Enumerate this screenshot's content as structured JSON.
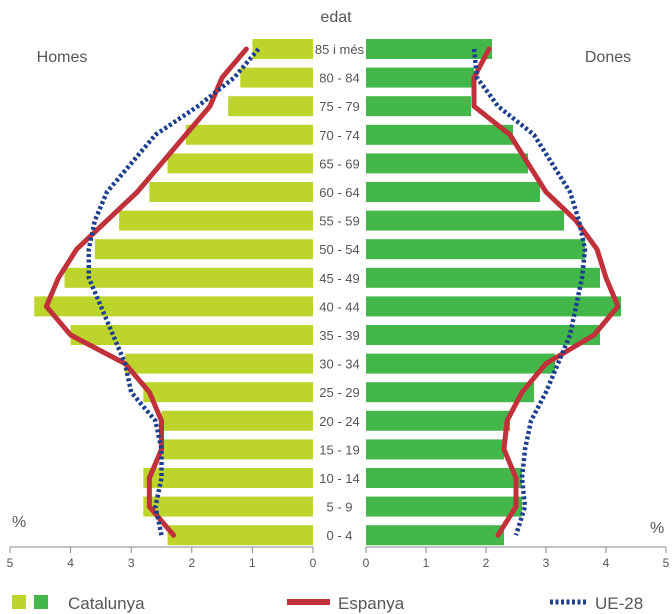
{
  "chart_data": {
    "type": "bar",
    "orientation": "horizontal",
    "layout": "population-pyramid",
    "center_label": "edat",
    "left_label": "Homes",
    "right_label": "Dones",
    "unit_label_left": "%",
    "unit_label_right": "%",
    "categories": [
      "85 i més",
      "80 - 84",
      "75 - 79",
      "70 - 74",
      "65 - 69",
      "60 - 64",
      "55 - 59",
      "50 - 54",
      "45 - 49",
      "40 - 44",
      "35 - 39",
      "30 - 34",
      "25 - 29",
      "20 - 24",
      "15 - 19",
      "10 - 14",
      "5 - 9",
      "0 - 4"
    ],
    "xlim": [
      0,
      5
    ],
    "ticks_left": [
      "5",
      "4",
      "3",
      "2",
      "1",
      "0"
    ],
    "ticks_right": [
      "0",
      "1",
      "2",
      "3",
      "4",
      "5"
    ],
    "series": [
      {
        "name": "Catalunya",
        "side": "left",
        "kind": "bar",
        "color": "#bdd42c",
        "values": [
          1.0,
          1.2,
          1.4,
          2.1,
          2.4,
          2.7,
          3.2,
          3.6,
          4.1,
          4.6,
          4.0,
          3.1,
          2.8,
          2.5,
          2.5,
          2.8,
          2.8,
          2.4
        ]
      },
      {
        "name": "Catalunya",
        "side": "right",
        "kind": "bar",
        "color": "#44b74a",
        "values": [
          2.1,
          1.8,
          1.75,
          2.45,
          2.7,
          2.9,
          3.3,
          3.65,
          3.9,
          4.25,
          3.9,
          3.15,
          2.8,
          2.4,
          2.3,
          2.6,
          2.6,
          2.3
        ]
      },
      {
        "name": "Espanya",
        "side": "left",
        "kind": "line",
        "color": "#c0313a",
        "values": [
          1.1,
          1.5,
          1.7,
          2.1,
          2.5,
          2.9,
          3.4,
          3.9,
          4.2,
          4.4,
          4.0,
          3.1,
          2.7,
          2.5,
          2.5,
          2.7,
          2.7,
          2.3
        ]
      },
      {
        "name": "Espanya",
        "side": "right",
        "kind": "line",
        "color": "#c0313a",
        "values": [
          2.05,
          1.8,
          1.8,
          2.4,
          2.7,
          3.0,
          3.5,
          3.85,
          4.0,
          4.2,
          3.8,
          3.0,
          2.6,
          2.35,
          2.3,
          2.5,
          2.5,
          2.2
        ]
      },
      {
        "name": "UE-28",
        "side": "left",
        "kind": "dotted-line",
        "color": "#1c3f8f",
        "values": [
          0.9,
          1.3,
          1.9,
          2.6,
          3.0,
          3.4,
          3.6,
          3.7,
          3.7,
          3.5,
          3.3,
          3.1,
          3.0,
          2.6,
          2.5,
          2.5,
          2.6,
          2.5
        ]
      },
      {
        "name": "UE-28",
        "side": "right",
        "kind": "dotted-line",
        "color": "#1c3f8f",
        "values": [
          1.8,
          1.85,
          2.2,
          2.8,
          3.1,
          3.4,
          3.55,
          3.65,
          3.6,
          3.5,
          3.4,
          3.2,
          3.0,
          2.75,
          2.65,
          2.6,
          2.65,
          2.5
        ]
      }
    ],
    "legend": {
      "placement": "bottom",
      "items": [
        {
          "label": "Catalunya",
          "kind": "squares",
          "colors": [
            "#bdd42c",
            "#44b74a"
          ]
        },
        {
          "label": "Espanya",
          "kind": "line",
          "color": "#c0313a"
        },
        {
          "label": "UE-28",
          "kind": "dotted-line",
          "color": "#1c3f8f"
        }
      ]
    }
  }
}
